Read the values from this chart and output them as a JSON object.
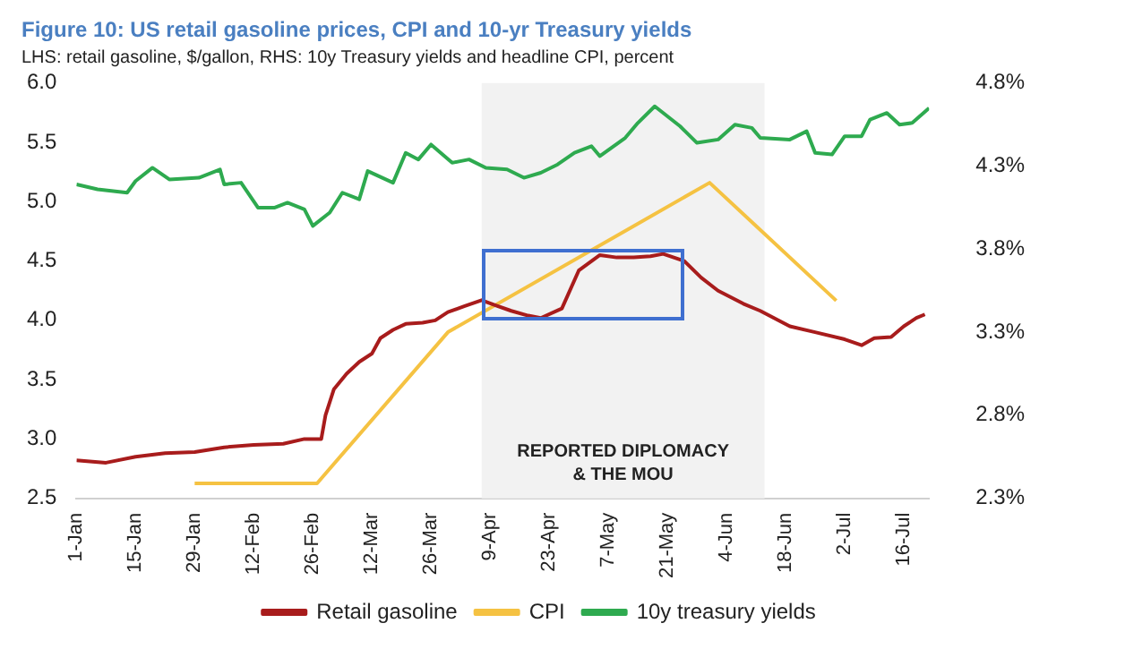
{
  "chart_data": {
    "type": "line",
    "title": "Figure 10: US retail gasoline prices, CPI and 10-yr Treasury yields",
    "subtitle": "LHS: retail gasoline, $/gallon, RHS: 10y Treasury yields and headline CPI, percent",
    "xlim": [
      "--01-01",
      "--07-22"
    ],
    "xticks": [
      {
        "value": "--01-01",
        "label": "1-Jan"
      },
      {
        "value": "--01-15",
        "label": "15-Jan"
      },
      {
        "value": "--01-29",
        "label": "29-Jan"
      },
      {
        "value": "--02-12",
        "label": "12-Feb"
      },
      {
        "value": "--02-26",
        "label": "26-Feb"
      },
      {
        "value": "--03-12",
        "label": "12-Mar"
      },
      {
        "value": "--03-26",
        "label": "26-Mar"
      },
      {
        "value": "--04-09",
        "label": "9-Apr"
      },
      {
        "value": "--04-23",
        "label": "23-Apr"
      },
      {
        "value": "--05-07",
        "label": "7-May"
      },
      {
        "value": "--05-21",
        "label": "21-May"
      },
      {
        "value": "--06-04",
        "label": "4-Jun"
      },
      {
        "value": "--06-18",
        "label": "18-Jun"
      },
      {
        "value": "--07-02",
        "label": "2-Jul"
      },
      {
        "value": "--07-16",
        "label": "16-Jul"
      }
    ],
    "ylim": [
      2.5,
      6.0
    ],
    "yticks": [
      {
        "value": 2.5,
        "label": "2.5"
      },
      {
        "value": 3.0,
        "label": "3.0"
      },
      {
        "value": 3.5,
        "label": "3.5"
      },
      {
        "value": 4.0,
        "label": "4.0"
      },
      {
        "value": 4.5,
        "label": "4.5"
      },
      {
        "value": 5.0,
        "label": "5.0"
      },
      {
        "value": 5.5,
        "label": "5.5"
      },
      {
        "value": 6.0,
        "label": "6.0"
      }
    ],
    "y2lim": [
      2.3,
      4.8
    ],
    "y2ticks": [
      {
        "value": 2.3,
        "label": "2.3%"
      },
      {
        "value": 2.8,
        "label": "2.8%"
      },
      {
        "value": 3.3,
        "label": "3.3%"
      },
      {
        "value": 3.8,
        "label": "3.8%"
      },
      {
        "value": 4.3,
        "label": "4.3%"
      },
      {
        "value": 4.8,
        "label": "4.8%"
      }
    ],
    "legend": "bottom",
    "bands": [
      {
        "axis": "x",
        "from": "--04-07",
        "to": "--06-13",
        "label": "REPORTED DIPLOMACY\n& THE MOU",
        "color": "#f2f2f2"
      }
    ],
    "series": [
      {
        "name": "Retail gasoline",
        "color": "#a81c1c",
        "x": [
          "--01-01",
          "--01-08",
          "--01-15",
          "--01-22",
          "--01-29",
          "--02-05",
          "--02-12",
          "--02-19",
          "--02-24",
          "--02-28",
          "--03-01",
          "--03-03",
          "--03-06",
          "--03-09",
          "--03-12",
          "--03-14",
          "--03-17",
          "--03-20",
          "--03-24",
          "--03-27",
          "--03-30",
          "--04-03",
          "--04-07",
          "--04-10",
          "--04-14",
          "--04-18",
          "--04-21",
          "--04-26",
          "--04-30",
          "--05-05",
          "--05-09",
          "--05-13",
          "--05-17",
          "--05-20",
          "--05-25",
          "--05-29",
          "--06-02",
          "--06-08",
          "--06-12",
          "--06-19",
          "--06-25",
          "--07-02",
          "--07-06",
          "--07-09",
          "--07-13",
          "--07-16",
          "--07-19",
          "--07-21"
        ],
        "values": [
          2.82,
          2.8,
          2.85,
          2.88,
          2.89,
          2.93,
          2.95,
          2.96,
          3.0,
          3.0,
          3.2,
          3.42,
          3.55,
          3.65,
          3.72,
          3.85,
          3.92,
          3.97,
          3.98,
          4.0,
          4.07,
          4.12,
          4.17,
          4.13,
          4.08,
          4.04,
          4.02,
          4.1,
          4.42,
          4.55,
          4.53,
          4.53,
          4.54,
          4.56,
          4.5,
          4.36,
          4.25,
          4.14,
          4.08,
          3.95,
          3.9,
          3.84,
          3.79,
          3.85,
          3.86,
          3.95,
          4.02,
          4.05
        ]
      },
      {
        "name": "CPI",
        "color": "#f5c242",
        "axis": "y2",
        "x": [
          "--01-29",
          "--02-27",
          "--03-30",
          "--05-31",
          "--06-30"
        ],
        "values": [
          2.39,
          2.39,
          3.3,
          4.2,
          3.49
        ]
      },
      {
        "name": "10y treasury yields",
        "color": "#2eaa4f",
        "axis": "y2",
        "x": [
          "--01-01",
          "--01-06",
          "--01-13",
          "--01-15",
          "--01-19",
          "--01-23",
          "--01-30",
          "--02-04",
          "--02-05",
          "--02-09",
          "--02-13",
          "--02-17",
          "--02-20",
          "--02-24",
          "--02-26",
          "--03-02",
          "--03-05",
          "--03-09",
          "--03-11",
          "--03-17",
          "--03-20",
          "--03-23",
          "--03-26",
          "--03-31",
          "--04-04",
          "--04-08",
          "--04-13",
          "--04-17",
          "--04-21",
          "--04-25",
          "--04-29",
          "--05-03",
          "--05-05",
          "--05-11",
          "--05-14",
          "--05-18",
          "--05-24",
          "--05-28",
          "--06-02",
          "--06-06",
          "--06-10",
          "--06-12",
          "--06-19",
          "--06-23",
          "--06-25",
          "--06-29",
          "--07-02",
          "--07-06",
          "--07-08",
          "--07-12",
          "--07-15",
          "--07-18",
          "--07-22"
        ],
        "values": [
          4.19,
          4.16,
          4.14,
          4.21,
          4.29,
          4.22,
          4.23,
          4.28,
          4.19,
          4.2,
          4.05,
          4.05,
          4.08,
          4.04,
          3.94,
          4.02,
          4.14,
          4.1,
          4.27,
          4.2,
          4.38,
          4.34,
          4.43,
          4.32,
          4.34,
          4.29,
          4.28,
          4.23,
          4.26,
          4.31,
          4.38,
          4.42,
          4.36,
          4.47,
          4.56,
          4.66,
          4.54,
          4.44,
          4.46,
          4.55,
          4.53,
          4.47,
          4.46,
          4.51,
          4.38,
          4.37,
          4.48,
          4.48,
          4.58,
          4.62,
          4.55,
          4.56,
          4.65
        ]
      }
    ]
  }
}
